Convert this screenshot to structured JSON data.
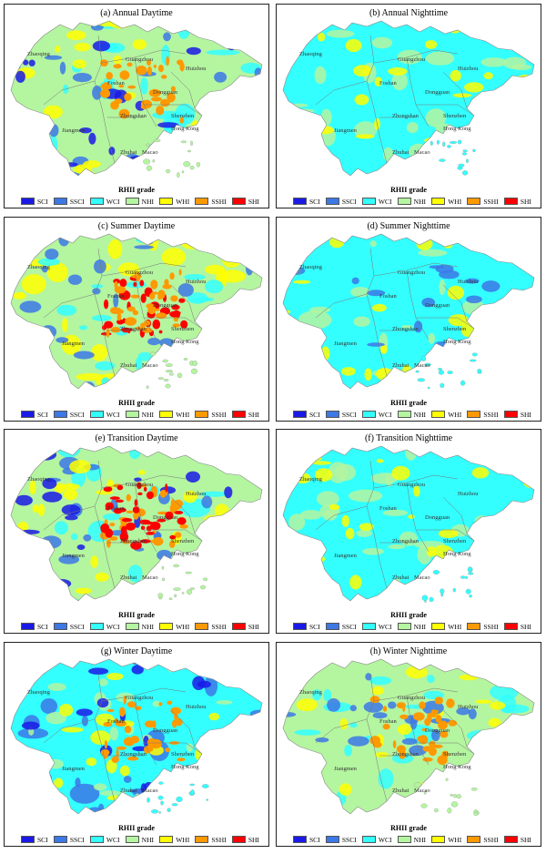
{
  "legend": {
    "title": "RHII grade",
    "items": [
      {
        "label": "SCI",
        "color": "#1a1ae6"
      },
      {
        "label": "SSCI",
        "color": "#3c78e6"
      },
      {
        "label": "WCI",
        "color": "#33ffff"
      },
      {
        "label": "NHI",
        "color": "#b4f5a0"
      },
      {
        "label": "WHI",
        "color": "#ffff00"
      },
      {
        "label": "SSHI",
        "color": "#ff9900"
      },
      {
        "label": "SHI",
        "color": "#ff0000"
      }
    ]
  },
  "cities": [
    "Zhaoqing",
    "Guangzhou",
    "Huizhou",
    "Foshan",
    "Dongguan",
    "Zhongshan",
    "Shenzhen",
    "Hong Kong",
    "Jiangmen",
    "Zhuhai",
    "Macao"
  ],
  "panels": [
    {
      "title": "(a) Annual Daytime",
      "base": "#b4f5a0",
      "patches": [
        "#33ffff",
        "#3c78e6",
        "#ffff00",
        "#1a1ae6"
      ],
      "hot": [
        "#ff9900"
      ]
    },
    {
      "title": "(b) Annual Nighttime",
      "base": "#33ffff",
      "patches": [
        "#b4f5a0",
        "#ffff00"
      ],
      "hot": []
    },
    {
      "title": "(c) Summer Daytime",
      "base": "#b4f5a0",
      "patches": [
        "#ffff00",
        "#33ffff",
        "#3c78e6"
      ],
      "hot": [
        "#ff0000",
        "#ff9900"
      ]
    },
    {
      "title": "(d) Summer Nighttime",
      "base": "#33ffff",
      "patches": [
        "#b4f5a0",
        "#ffff00",
        "#3c78e6"
      ],
      "hot": []
    },
    {
      "title": "(e) Transition Daytime",
      "base": "#b4f5a0",
      "patches": [
        "#33ffff",
        "#3c78e6",
        "#ffff00",
        "#1a1ae6"
      ],
      "hot": [
        "#ff9900",
        "#ff0000"
      ]
    },
    {
      "title": "(f) Transition Nighttime",
      "base": "#33ffff",
      "patches": [
        "#b4f5a0",
        "#ffff00"
      ],
      "hot": []
    },
    {
      "title": "(g) Winter Daytime",
      "base": "#33ffff",
      "patches": [
        "#3c78e6",
        "#b4f5a0",
        "#ffff00",
        "#1a1ae6"
      ],
      "hot": [
        "#ff9900"
      ]
    },
    {
      "title": "(h) Winter Nighttime",
      "base": "#b4f5a0",
      "patches": [
        "#33ffff",
        "#ffff00",
        "#3c78e6"
      ],
      "hot": [
        "#ff9900"
      ]
    }
  ]
}
